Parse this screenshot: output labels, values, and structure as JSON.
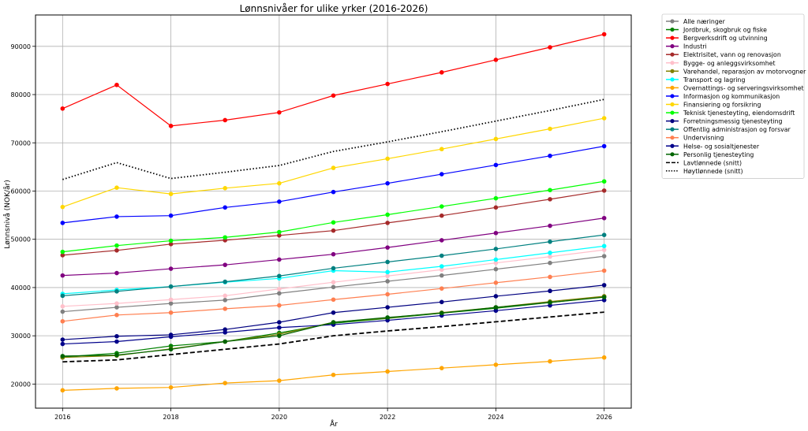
{
  "chart_data": {
    "type": "line",
    "title": "Lønnsnivåer for ulike yrker (2016-2026)",
    "xlabel": "År",
    "ylabel": "Lønnsnivå (NOK/år)",
    "x": [
      2016,
      2017,
      2018,
      2019,
      2020,
      2021,
      2022,
      2023,
      2024,
      2025,
      2026
    ],
    "xticks": [
      2016,
      2018,
      2020,
      2022,
      2024,
      2026
    ],
    "yticks": [
      20000,
      30000,
      40000,
      50000,
      60000,
      70000,
      80000,
      90000
    ],
    "xlim": [
      2015.5,
      2026.5
    ],
    "ylim": [
      15000,
      96500
    ],
    "grid": true,
    "legend_position": "outside-right",
    "series": [
      {
        "name": "Alle næringer",
        "color": "#808080",
        "style": "solid",
        "marker": true,
        "values": [
          35000,
          35900,
          36700,
          37400,
          38800,
          40100,
          41300,
          42500,
          43800,
          45100,
          46500
        ]
      },
      {
        "name": "Jordbruk, skogbruk og fiske",
        "color": "#008000",
        "style": "solid",
        "marker": true,
        "values": [
          25600,
          26400,
          27900,
          28800,
          30600,
          32600,
          33600,
          34700,
          35700,
          36900,
          38100
        ]
      },
      {
        "name": "Bergverksdrift og utvinning",
        "color": "#ff0000",
        "style": "solid",
        "marker": true,
        "values": [
          77100,
          82000,
          73500,
          74700,
          76300,
          79800,
          82200,
          84600,
          87200,
          89800,
          92500
        ]
      },
      {
        "name": "Industri",
        "color": "#800080",
        "style": "solid",
        "marker": true,
        "values": [
          42500,
          43000,
          43900,
          44700,
          45800,
          46900,
          48300,
          49800,
          51300,
          52800,
          54400
        ]
      },
      {
        "name": "Elektrisitet, vann og renovasjon",
        "color": "#a52a2a",
        "style": "solid",
        "marker": true,
        "values": [
          46700,
          47700,
          49000,
          49800,
          50800,
          51800,
          53400,
          54900,
          56600,
          58300,
          60100
        ]
      },
      {
        "name": "Bygge- og anleggsvirksomhet",
        "color": "#ffc0cb",
        "style": "solid",
        "marker": true,
        "values": [
          36100,
          36700,
          37500,
          38300,
          39700,
          41100,
          42400,
          43700,
          45100,
          46400,
          47800
        ]
      },
      {
        "name": "Varehandel, reparasjon av motorvogner",
        "color": "#808000",
        "style": "solid",
        "marker": true,
        "values": [
          25500,
          25900,
          27300,
          28800,
          30300,
          32800,
          33700,
          34800,
          35900,
          37100,
          38200
        ]
      },
      {
        "name": "Transport og lagring",
        "color": "#00ffff",
        "style": "solid",
        "marker": true,
        "values": [
          38700,
          39500,
          40200,
          41100,
          41900,
          43500,
          43200,
          44400,
          45800,
          47200,
          48600
        ]
      },
      {
        "name": "Overnattings- og serveringsvirksomhet",
        "color": "#ffa500",
        "style": "solid",
        "marker": true,
        "values": [
          18700,
          19100,
          19300,
          20200,
          20700,
          21900,
          22600,
          23300,
          24000,
          24700,
          25500
        ]
      },
      {
        "name": "Informasjon og kommunikasjon",
        "color": "#0000ff",
        "style": "solid",
        "marker": true,
        "values": [
          53400,
          54700,
          54900,
          56600,
          57800,
          59800,
          61600,
          63500,
          65400,
          67300,
          69300
        ]
      },
      {
        "name": "Finansiering og forsikring",
        "color": "#ffd700",
        "style": "solid",
        "marker": true,
        "values": [
          56700,
          60700,
          59400,
          60600,
          61600,
          64800,
          66700,
          68700,
          70800,
          72900,
          75100
        ]
      },
      {
        "name": "Teknisk tjenesteyting, eiendomsdrift",
        "color": "#00ff00",
        "style": "solid",
        "marker": true,
        "values": [
          47400,
          48700,
          49700,
          50400,
          51500,
          53500,
          55100,
          56800,
          58500,
          60200,
          62000
        ]
      },
      {
        "name": "Forretningsmessig tjenesteyting",
        "color": "#000080",
        "style": "solid",
        "marker": true,
        "values": [
          29200,
          29900,
          30200,
          31300,
          32800,
          34800,
          35900,
          37000,
          38200,
          39300,
          40500
        ]
      },
      {
        "name": "Offentlig administrasjon og forsvar",
        "color": "#008080",
        "style": "solid",
        "marker": true,
        "values": [
          38300,
          39200,
          40200,
          41200,
          42400,
          44000,
          45300,
          46600,
          48000,
          49500,
          50900
        ]
      },
      {
        "name": "Undervisning",
        "color": "#ff7f50",
        "style": "solid",
        "marker": true,
        "values": [
          33000,
          34300,
          34800,
          35600,
          36300,
          37500,
          38600,
          39800,
          41000,
          42200,
          43500
        ]
      },
      {
        "name": "Helse- og sosialtjenester",
        "color": "#00008b",
        "style": "solid",
        "marker": true,
        "values": [
          28300,
          28800,
          29800,
          30700,
          31700,
          32300,
          33200,
          34200,
          35200,
          36300,
          37400
        ]
      },
      {
        "name": "Personlig tjenesteyting",
        "color": "#006400",
        "style": "solid",
        "marker": true,
        "values": [
          25800,
          26000,
          27200,
          28800,
          30000,
          32800,
          33800,
          34700,
          35900,
          36900,
          38000
        ]
      },
      {
        "name": "Lavtlønnede (snitt)",
        "color": "#000000",
        "style": "dashed",
        "marker": false,
        "values": [
          24600,
          25000,
          26100,
          27200,
          28300,
          30000,
          31000,
          31900,
          32900,
          33900,
          34900
        ]
      },
      {
        "name": "Høytlønnede (snitt)",
        "color": "#000000",
        "style": "dotted",
        "marker": false,
        "values": [
          62400,
          65900,
          62600,
          63900,
          65300,
          68200,
          70200,
          72300,
          74500,
          76700,
          79000
        ]
      }
    ]
  }
}
